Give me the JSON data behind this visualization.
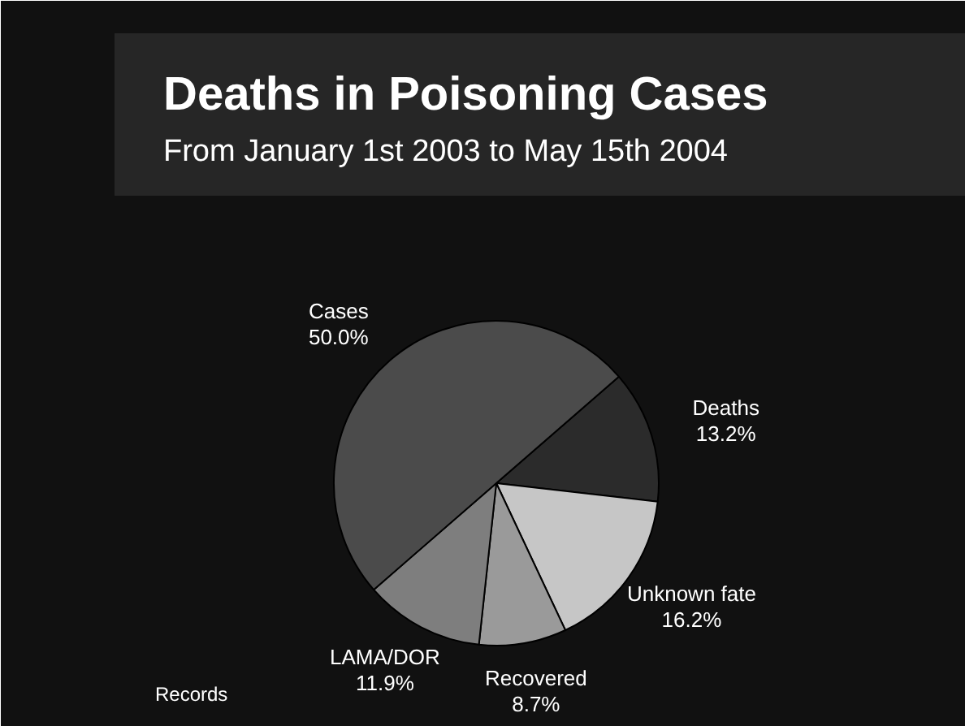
{
  "chart_data": {
    "type": "pie",
    "title": "Deaths in Poisoning Cases",
    "subtitle": "From January 1st 2003 to May 15th 2004",
    "categories": [
      "Deaths",
      "Unknown fate",
      "Recovered",
      "LAMA/DOR",
      "Cases"
    ],
    "values": [
      13.2,
      16.2,
      8.7,
      11.9,
      50.0
    ],
    "value_labels": [
      "13.2%",
      "16.2%",
      "8.7%",
      "11.9%",
      "50.0%"
    ],
    "colors": [
      "#2b2b2b",
      "#c6c6c6",
      "#9a9a9a",
      "#7e7e7e",
      "#4b4b4b"
    ],
    "annotations": [
      "Records"
    ]
  }
}
